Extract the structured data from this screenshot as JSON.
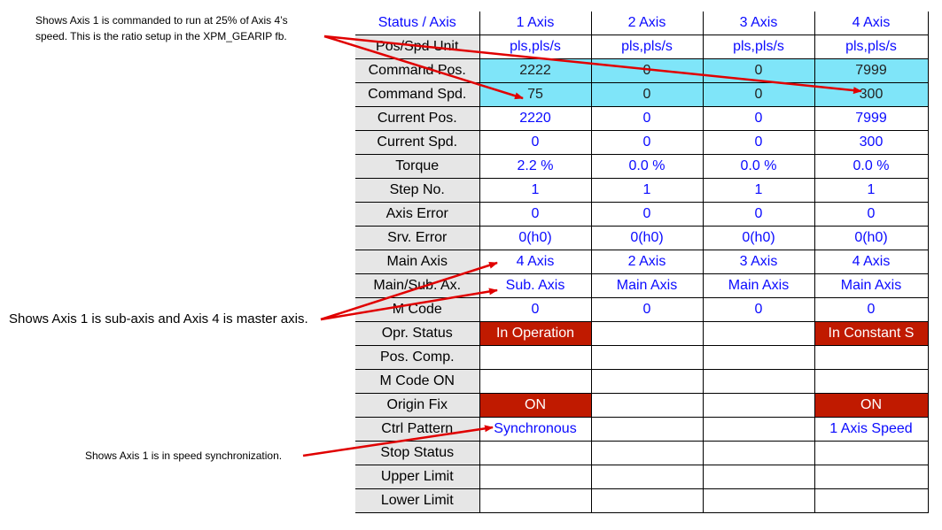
{
  "annotations": {
    "ratio_note": "Shows Axis 1 is commanded to run at 25% of Axis 4’s speed. This is the ratio setup in the XPM_GEARIP fb.",
    "master_note": "Shows Axis 1 is sub-axis and Axis 4 is master axis.",
    "sync_note": "Shows Axis 1 is in speed synchronization.",
    "arrow_color": "#e00000"
  },
  "colors": {
    "header_bg": "#e6e6e6",
    "value_text": "#0a0aff",
    "command_highlight": "#7fe5f9",
    "status_red": "#c01a00"
  },
  "grid": {
    "header": {
      "corner": "Status / Axis",
      "axes": [
        "1 Axis",
        "2 Axis",
        "3 Axis",
        "4 Axis"
      ]
    },
    "rows": [
      {
        "label": "Pos/Spd Unit",
        "values": [
          "pls,pls/s",
          "pls,pls/s",
          "pls,pls/s",
          "pls,pls/s"
        ]
      },
      {
        "label": "Command Pos.",
        "values": [
          "2222",
          "0",
          "0",
          "7999"
        ]
      },
      {
        "label": "Command Spd.",
        "values": [
          "75",
          "0",
          "0",
          "300"
        ]
      },
      {
        "label": "Current Pos.",
        "values": [
          "2220",
          "0",
          "0",
          "7999"
        ]
      },
      {
        "label": "Current Spd.",
        "values": [
          "0",
          "0",
          "0",
          "300"
        ]
      },
      {
        "label": "Torque",
        "values": [
          "2.2 %",
          "0.0 %",
          "0.0 %",
          "0.0 %"
        ]
      },
      {
        "label": "Step No.",
        "values": [
          "1",
          "1",
          "1",
          "1"
        ]
      },
      {
        "label": "Axis Error",
        "values": [
          "0",
          "0",
          "0",
          "0"
        ]
      },
      {
        "label": "Srv. Error",
        "values": [
          "0(h0)",
          "0(h0)",
          "0(h0)",
          "0(h0)"
        ]
      },
      {
        "label": "Main Axis",
        "values": [
          "4 Axis",
          "2 Axis",
          "3 Axis",
          "4 Axis"
        ]
      },
      {
        "label": "Main/Sub. Ax.",
        "values": [
          "Sub. Axis",
          "Main Axis",
          "Main Axis",
          "Main Axis"
        ]
      },
      {
        "label": "M Code",
        "values": [
          "0",
          "0",
          "0",
          "0"
        ]
      },
      {
        "label": "Opr. Status",
        "values": [
          "In Operation",
          "",
          "",
          "In Constant S"
        ]
      },
      {
        "label": "Pos. Comp.",
        "values": [
          "",
          "",
          "",
          ""
        ]
      },
      {
        "label": "M Code ON",
        "values": [
          "",
          "",
          "",
          ""
        ]
      },
      {
        "label": "Origin Fix",
        "values": [
          "ON",
          "",
          "",
          "ON"
        ]
      },
      {
        "label": "Ctrl Pattern",
        "values": [
          "Synchronous",
          "",
          "",
          "1 Axis Speed"
        ]
      },
      {
        "label": "Stop Status",
        "values": [
          "",
          "",
          "",
          ""
        ]
      },
      {
        "label": "Upper Limit",
        "values": [
          "",
          "",
          "",
          ""
        ]
      },
      {
        "label": "Lower Limit",
        "values": [
          "",
          "",
          "",
          ""
        ]
      }
    ]
  }
}
